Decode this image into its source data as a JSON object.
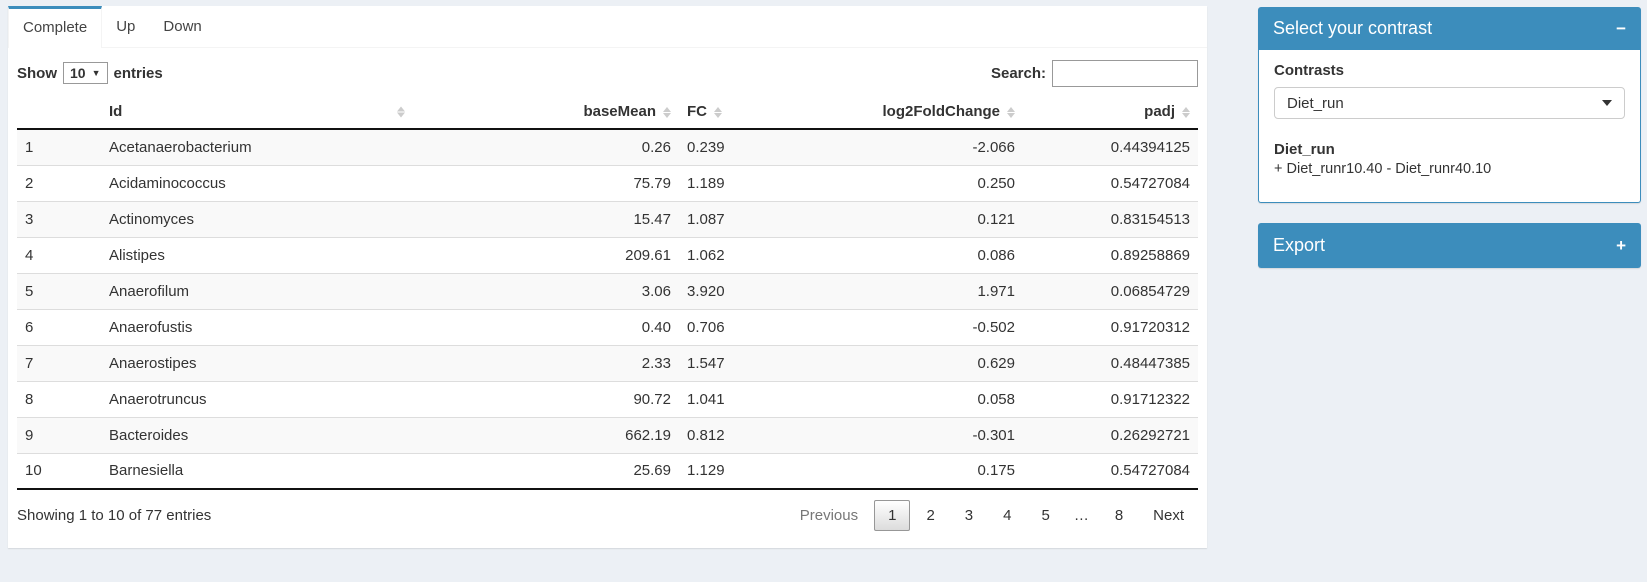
{
  "tabs": [
    {
      "label": "Complete",
      "active": true
    },
    {
      "label": "Up",
      "active": false
    },
    {
      "label": "Down",
      "active": false
    }
  ],
  "length_control": {
    "prefix": "Show",
    "value": "10",
    "suffix": "entries"
  },
  "search": {
    "label": "Search:",
    "value": ""
  },
  "table": {
    "columns": [
      {
        "key": "index",
        "label": "",
        "align": "left",
        "sortable": false
      },
      {
        "key": "id",
        "label": "Id",
        "align": "left",
        "sortable": true
      },
      {
        "key": "basemean",
        "label": "baseMean",
        "align": "right",
        "sortable": true
      },
      {
        "key": "fc",
        "label": "FC",
        "align": "left",
        "sortable": true
      },
      {
        "key": "log2foldchange",
        "label": "log2FoldChange",
        "align": "right",
        "sortable": true
      },
      {
        "key": "padj",
        "label": "padj",
        "align": "right",
        "sortable": true
      }
    ],
    "rows": [
      [
        "1",
        "Acetanaerobacterium",
        "0.26",
        "0.239",
        "-2.066",
        "0.44394125"
      ],
      [
        "2",
        "Acidaminococcus",
        "75.79",
        "1.189",
        "0.250",
        "0.54727084"
      ],
      [
        "3",
        "Actinomyces",
        "15.47",
        "1.087",
        "0.121",
        "0.83154513"
      ],
      [
        "4",
        "Alistipes",
        "209.61",
        "1.062",
        "0.086",
        "0.89258869"
      ],
      [
        "5",
        "Anaerofilum",
        "3.06",
        "3.920",
        "1.971",
        "0.06854729"
      ],
      [
        "6",
        "Anaerofustis",
        "0.40",
        "0.706",
        "-0.502",
        "0.91720312"
      ],
      [
        "7",
        "Anaerostipes",
        "2.33",
        "1.547",
        "0.629",
        "0.48447385"
      ],
      [
        "8",
        "Anaerotruncus",
        "90.72",
        "1.041",
        "0.058",
        "0.91712322"
      ],
      [
        "9",
        "Bacteroides",
        "662.19",
        "0.812",
        "-0.301",
        "0.26292721"
      ],
      [
        "10",
        "Barnesiella",
        "25.69",
        "1.129",
        "0.175",
        "0.54727084"
      ]
    ],
    "info": "Showing 1 to 10 of 77 entries"
  },
  "pagination": {
    "previous": "Previous",
    "pages": [
      "1",
      "2",
      "3",
      "4",
      "5",
      "…",
      "8"
    ],
    "current": "1",
    "ellipsis": "…",
    "next": "Next"
  },
  "contrast_panel": {
    "title": "Select your contrast",
    "collapse_icon": "−",
    "contrasts_label": "Contrasts",
    "selected_contrast": "Diet_run",
    "contrast_name": "Diet_run",
    "contrast_formula": "+ Diet_runr10.40 - Diet_runr40.10"
  },
  "export_panel": {
    "title": "Export",
    "expand_icon": "+"
  },
  "colors": {
    "accent": "#3c8dbc",
    "page_bg": "#ecf0f5"
  }
}
